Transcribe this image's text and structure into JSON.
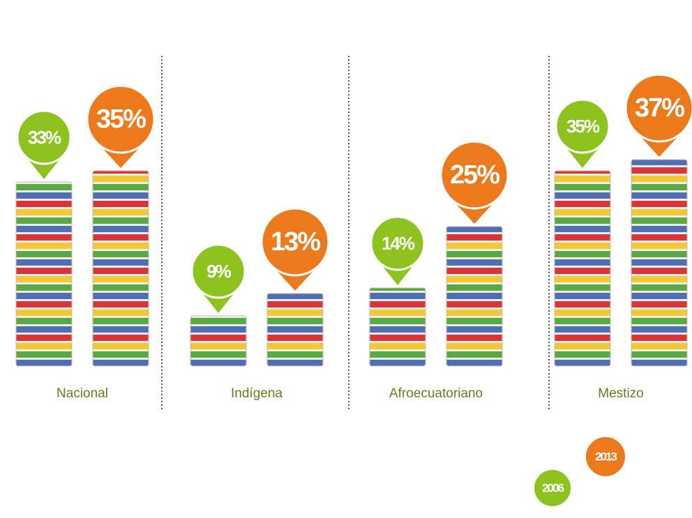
{
  "chart_data": {
    "type": "bar",
    "categories": [
      "Nacional",
      "Indígena",
      "Afroecuatoriano",
      "Mestizo"
    ],
    "series": [
      {
        "name": "2006",
        "color": "#8dc21f",
        "values": [
          33,
          9,
          14,
          35
        ],
        "value_labels": [
          "33%",
          "9%",
          "14%",
          "35%"
        ]
      },
      {
        "name": "2013",
        "color": "#ec7a1c",
        "values": [
          35,
          13,
          25,
          37
        ],
        "value_labels": [
          "35%",
          "13%",
          "25%",
          "37%"
        ]
      }
    ],
    "legend": "bottom-right"
  }
}
